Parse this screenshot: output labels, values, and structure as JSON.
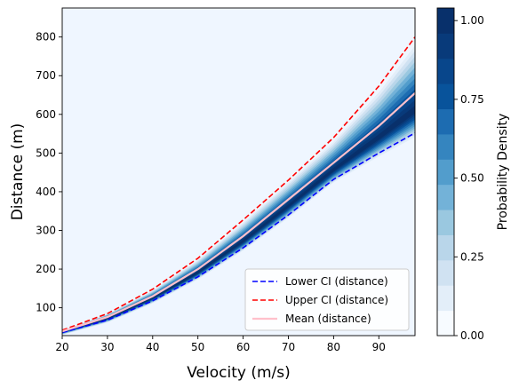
{
  "chart_data": {
    "type": "heatmap",
    "title": "",
    "xlabel": "Velocity (m/s)",
    "ylabel": "Distance (m)",
    "xlim": [
      20,
      98
    ],
    "ylim": [
      28,
      875
    ],
    "x_ticks": [
      20,
      30,
      40,
      50,
      60,
      70,
      80,
      90
    ],
    "y_ticks": [
      100,
      200,
      300,
      400,
      500,
      600,
      700,
      800
    ],
    "grid": false,
    "legend_position": "lower-right",
    "colorbar": {
      "label": "Probability Density",
      "ticks": [
        0.0,
        0.25,
        0.5,
        0.75,
        1.0
      ],
      "tick_labels": [
        "0.00",
        "0.25",
        "0.50",
        "0.75",
        "1.00"
      ],
      "range": [
        0.0,
        1.04
      ],
      "levels": 13,
      "colors": [
        "#f7fbff",
        "#e3eef9",
        "#d0e2f2",
        "#b9d6ea",
        "#9ac8e0",
        "#73b2d8",
        "#529dcc",
        "#3585bf",
        "#1d6cb1",
        "#08539b",
        "#08468b",
        "#083a7a",
        "#08306b"
      ]
    },
    "density_background_color": "#eff6ff",
    "series": [
      {
        "name": "Lower CI (distance)",
        "style": "dashed",
        "color": "#0000ff",
        "x": [
          20,
          30,
          40,
          50,
          60,
          70,
          80,
          90,
          98
        ],
        "y": [
          36,
          68,
          118,
          180,
          255,
          340,
          432,
          500,
          552
        ]
      },
      {
        "name": "Upper CI (distance)",
        "style": "dashed",
        "color": "#ff0000",
        "x": [
          20,
          30,
          40,
          50,
          60,
          70,
          80,
          90,
          98
        ],
        "y": [
          42,
          85,
          148,
          228,
          327,
          430,
          540,
          673,
          800
        ]
      },
      {
        "name": "Mean (distance)",
        "style": "solid",
        "color": "#ffc0cb",
        "x": [
          20,
          30,
          40,
          50,
          60,
          70,
          80,
          90,
          98
        ],
        "y": [
          39,
          76,
          130,
          200,
          285,
          380,
          475,
          570,
          655
        ]
      }
    ]
  }
}
